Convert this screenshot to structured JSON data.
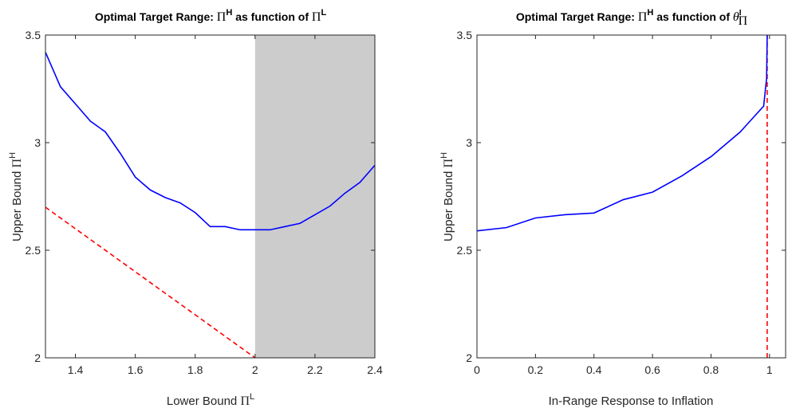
{
  "chart_data": [
    {
      "type": "line",
      "title": [
        "Optimal Target Range: ",
        "Π",
        "H",
        " as function of ",
        "Π",
        "L"
      ],
      "xlabel": [
        "Lower Bound ",
        "Π",
        "L"
      ],
      "ylabel": [
        "Upper Bound ",
        "Π",
        "H"
      ],
      "xlim": [
        1.3,
        2.4
      ],
      "ylim": [
        2,
        3.5
      ],
      "xticks": [
        1.4,
        1.6,
        1.8,
        2,
        2.2,
        2.4
      ],
      "yticks": [
        2,
        2.5,
        3,
        3.5
      ],
      "shade": [
        2,
        2.4
      ],
      "shade_color": "#cccccc",
      "series": [
        {
          "color": "#0000ff",
          "style": "solid",
          "x": [
            1.3,
            1.35,
            1.4,
            1.45,
            1.5,
            1.55,
            1.6,
            1.65,
            1.7,
            1.75,
            1.8,
            1.85,
            1.9,
            1.95,
            2,
            2.05,
            2.1,
            2.15,
            2.2,
            2.25,
            2.3,
            2.35,
            2.4
          ],
          "values": [
            3.42,
            3.26,
            3.18,
            3.1,
            3.05,
            2.95,
            2.84,
            2.78,
            2.745,
            2.72,
            2.675,
            2.61,
            2.61,
            2.595,
            2.595,
            2.595,
            2.61,
            2.625,
            2.665,
            2.705,
            2.765,
            2.815,
            2.895
          ]
        },
        {
          "color": "#ff0000",
          "style": "dashed",
          "x": [
            1.3,
            2
          ],
          "values": [
            2.7,
            2.0
          ]
        }
      ]
    },
    {
      "type": "line",
      "title": [
        "Optimal Target Range: ",
        "Π",
        "H",
        " as function of ",
        "θ",
        "I",
        "Π"
      ],
      "xlabel": "In-Range Response to Inflation",
      "ylabel": [
        "Upper Bound ",
        "Π",
        "H"
      ],
      "xlim": [
        0,
        1.055
      ],
      "ylim": [
        2,
        3.5
      ],
      "xticks": [
        0,
        0.2,
        0.4,
        0.6,
        0.8,
        1
      ],
      "yticks": [
        2,
        2.5,
        3,
        3.5
      ],
      "series": [
        {
          "color": "#ff0000",
          "style": "dashed",
          "x": [
            0.992,
            0.992
          ],
          "values": [
            2,
            3.5
          ]
        },
        {
          "color": "#0000ff",
          "style": "solid",
          "x": [
            0,
            0.1,
            0.2,
            0.3,
            0.4,
            0.5,
            0.6,
            0.7,
            0.8,
            0.9,
            0.92,
            0.95,
            0.98,
            0.99,
            0.992
          ],
          "values": [
            2.59,
            2.605,
            2.65,
            2.665,
            2.673,
            2.735,
            2.77,
            2.845,
            2.935,
            3.05,
            3.08,
            3.125,
            3.17,
            3.3,
            3.5
          ]
        }
      ]
    }
  ]
}
